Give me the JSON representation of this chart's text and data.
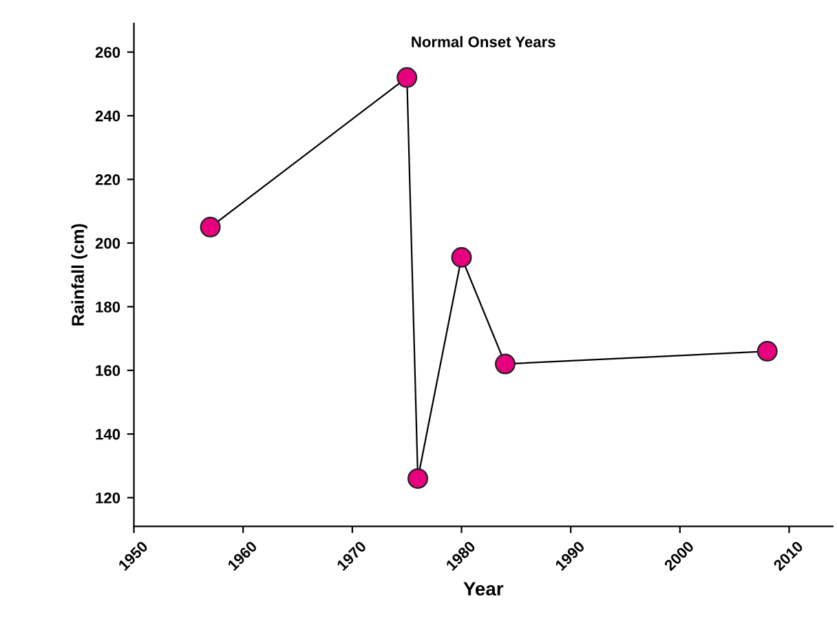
{
  "chart_data": {
    "type": "line",
    "title": "Normal Onset Years",
    "xlabel": "Year",
    "ylabel": "Rainfall (cm)",
    "x": [
      1957,
      1975,
      1976,
      1980,
      1984,
      2008
    ],
    "series": [
      {
        "color": "#e6007e",
        "values": [
          205,
          252,
          126,
          195.5,
          162,
          166
        ]
      }
    ],
    "xlim": [
      1950,
      2014
    ],
    "xticks": [
      1950,
      1960,
      1970,
      1980,
      1990,
      2000,
      2010
    ],
    "ylim": [
      111,
      269
    ],
    "yticks": [
      120,
      140,
      160,
      180,
      200,
      220,
      240,
      260
    ],
    "marker": "circle",
    "line_style": "solid",
    "grid": false,
    "legend": false
  }
}
